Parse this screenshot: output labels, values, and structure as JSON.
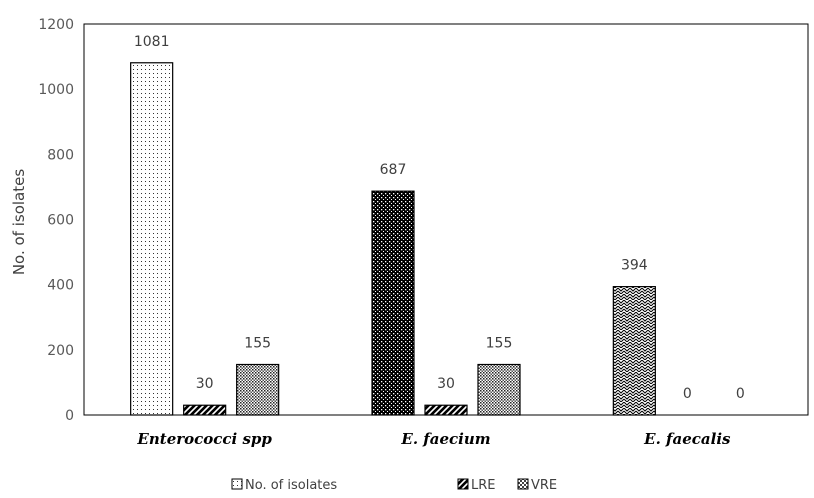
{
  "chart_data": {
    "type": "bar",
    "title": "",
    "xlabel": "",
    "ylabel": "No. of isolates",
    "ylim": [
      0,
      1200
    ],
    "yticks": [
      0,
      200,
      400,
      600,
      800,
      1000,
      1200
    ],
    "grid": false,
    "legend_position": "bottom",
    "categories": [
      "Enterococci spp",
      "E. faecium",
      "E. faecalis"
    ],
    "series": [
      {
        "name": "No. of isolates",
        "values": [
          1081,
          687,
          394
        ]
      },
      {
        "name": "LRE",
        "values": [
          30,
          30,
          0
        ]
      },
      {
        "name": "VRE",
        "values": [
          155,
          155,
          0
        ]
      }
    ],
    "point_patterns": [
      [
        "dots-light",
        "dots-dense",
        "dots-fine"
      ],
      [
        "dots-light",
        "dots-dense",
        "dots-fine"
      ]
    ]
  }
}
